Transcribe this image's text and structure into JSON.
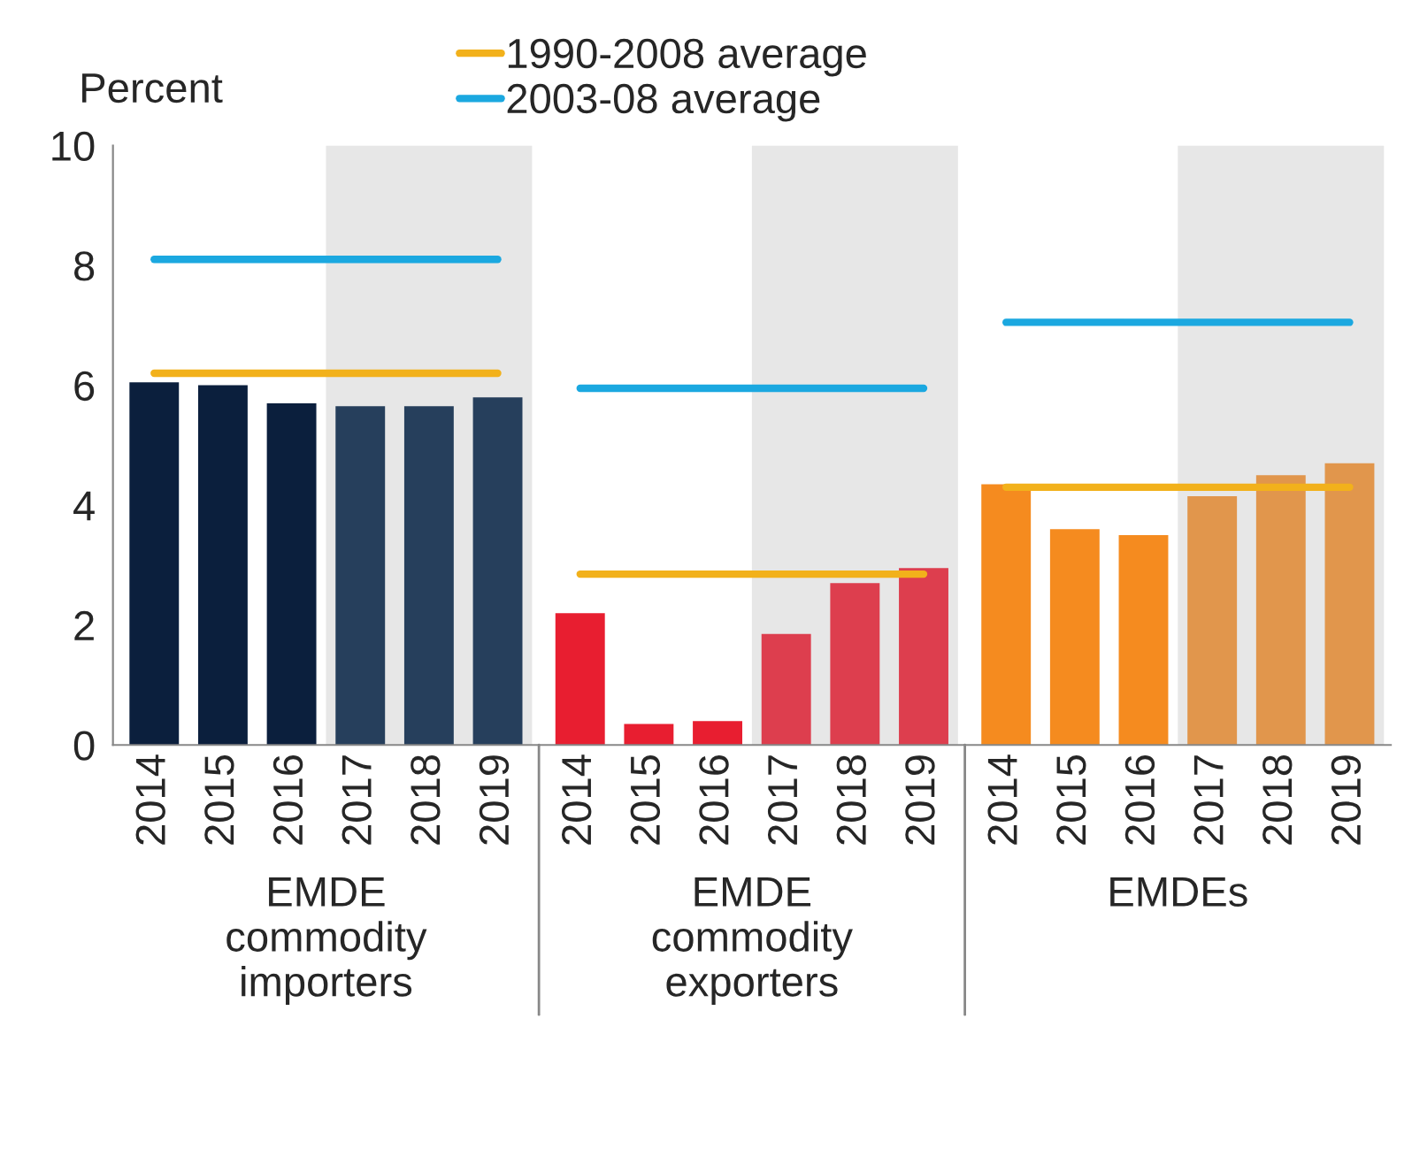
{
  "chart_data": [
    {
      "type": "bar",
      "ylabel": "Percent",
      "xlabel": "EMDE commodity importers",
      "categories": [
        "2014",
        "2015",
        "2016",
        "2017",
        "2018",
        "2019"
      ],
      "ylim": [
        0,
        10
      ],
      "yticks": [
        0,
        2,
        4,
        6,
        8,
        10
      ],
      "legend": "top",
      "grid": false,
      "series": [
        {
          "values": [
            6.05,
            6.0,
            5.7,
            5.65,
            5.65,
            5.8
          ],
          "colors": [
            "#0b1f3d",
            "#0b1f3d",
            "#0b1f3d",
            "#263f5c",
            "#263f5c",
            "#263f5c"
          ]
        },
        {
          "type": "line",
          "name": "1990-2008 average",
          "color": "#f2b11b",
          "values": [
            6.2,
            6.2,
            6.2,
            6.2,
            6.2,
            6.2
          ]
        },
        {
          "type": "line",
          "name": "2003-08 average",
          "color": "#1ba8e0",
          "values": [
            8.1,
            8.1,
            8.1,
            8.1,
            8.1,
            8.1
          ]
        }
      ],
      "bands": [
        {
          "axis": "x",
          "from": "2017",
          "to": "2019",
          "color": "#e7e7e7"
        }
      ]
    },
    {
      "type": "bar",
      "xlabel": "EMDE commodity exporters",
      "categories": [
        "2014",
        "2015",
        "2016",
        "2017",
        "2018",
        "2019"
      ],
      "ylim": [
        0,
        10
      ],
      "yticks": [
        0,
        2,
        4,
        6,
        8,
        10
      ],
      "tick_labels": "x",
      "grid": false,
      "series": [
        {
          "values": [
            2.2,
            0.35,
            0.4,
            1.85,
            2.7,
            2.95
          ],
          "colors": [
            "#e81e30",
            "#e81e30",
            "#e81e30",
            "#dd3e4e",
            "#dd3e4e",
            "#dd3e4e"
          ]
        },
        {
          "type": "line",
          "color": "#f2b11b",
          "values": [
            2.85,
            2.85,
            2.85,
            2.85,
            2.85,
            2.85
          ]
        },
        {
          "type": "line",
          "color": "#1ba8e0",
          "values": [
            5.95,
            5.95,
            5.95,
            5.95,
            5.95,
            5.95
          ]
        }
      ],
      "bands": [
        {
          "axis": "x",
          "from": "2017",
          "to": "2019",
          "color": "#e7e7e7"
        }
      ]
    },
    {
      "type": "bar",
      "xlabel": "EMDEs",
      "categories": [
        "2014",
        "2015",
        "2016",
        "2017",
        "2018",
        "2019"
      ],
      "ylim": [
        0,
        10
      ],
      "yticks": [
        0,
        2,
        4,
        6,
        8,
        10
      ],
      "tick_labels": "x",
      "grid": false,
      "series": [
        {
          "values": [
            4.35,
            3.6,
            3.5,
            4.15,
            4.5,
            4.7
          ],
          "colors": [
            "#f58b1f",
            "#f58b1f",
            "#f58b1f",
            "#e1964c",
            "#e1964c",
            "#e1964c"
          ]
        },
        {
          "type": "line",
          "color": "#f2b11b",
          "values": [
            4.3,
            4.3,
            4.3,
            4.3,
            4.3,
            4.3
          ]
        },
        {
          "type": "line",
          "color": "#1ba8e0",
          "values": [
            7.05,
            7.05,
            7.05,
            7.05,
            7.05,
            7.05
          ]
        }
      ],
      "bands": [
        {
          "axis": "x",
          "from": "2017",
          "to": "2019",
          "color": "#e7e7e7"
        }
      ]
    }
  ]
}
